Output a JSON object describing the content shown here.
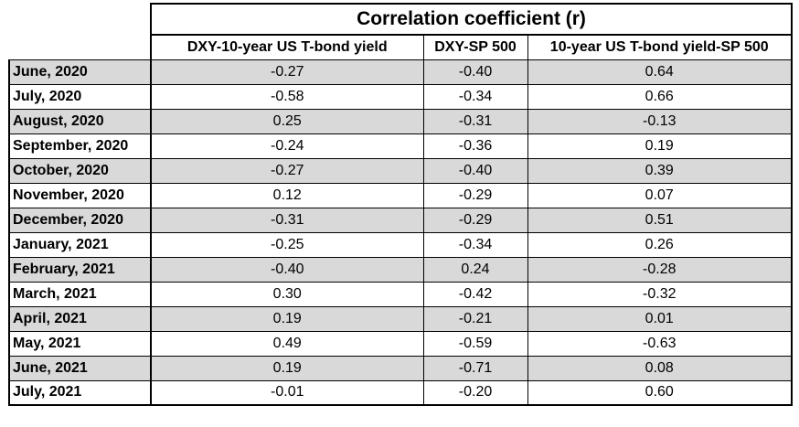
{
  "table": {
    "title": "Correlation coefficient (r)",
    "columns": [
      "DXY-10-year US T-bond yield",
      "DXY-SP 500",
      "10-year US T-bond yield-SP 500"
    ],
    "rows": [
      {
        "label": "June, 2020",
        "values": [
          "-0.27",
          "-0.40",
          "0.64"
        ]
      },
      {
        "label": "July, 2020",
        "values": [
          "-0.58",
          "-0.34",
          "0.66"
        ]
      },
      {
        "label": "August, 2020",
        "values": [
          "0.25",
          "-0.31",
          "-0.13"
        ]
      },
      {
        "label": "September, 2020",
        "values": [
          "-0.24",
          "-0.36",
          "0.19"
        ]
      },
      {
        "label": "October, 2020",
        "values": [
          "-0.27",
          "-0.40",
          "0.39"
        ]
      },
      {
        "label": "November, 2020",
        "values": [
          "0.12",
          "-0.29",
          "0.07"
        ]
      },
      {
        "label": "December, 2020",
        "values": [
          "-0.31",
          "-0.29",
          "0.51"
        ]
      },
      {
        "label": "January, 2021",
        "values": [
          "-0.25",
          "-0.34",
          "0.26"
        ]
      },
      {
        "label": "February, 2021",
        "values": [
          "-0.40",
          "0.24",
          "-0.28"
        ]
      },
      {
        "label": "March, 2021",
        "values": [
          "0.30",
          "-0.42",
          "-0.32"
        ]
      },
      {
        "label": "April, 2021",
        "values": [
          "0.19",
          "-0.21",
          "0.01"
        ]
      },
      {
        "label": "May, 2021",
        "values": [
          "0.49",
          "-0.59",
          "-0.63"
        ]
      },
      {
        "label": "June, 2021",
        "values": [
          "0.19",
          "-0.71",
          "0.08"
        ]
      },
      {
        "label": "July, 2021",
        "values": [
          "-0.01",
          "-0.20",
          "0.60"
        ]
      }
    ]
  },
  "colors": {
    "shaded_row": "#d9d9d9",
    "plain_row": "#ffffff",
    "border": "#000000"
  }
}
